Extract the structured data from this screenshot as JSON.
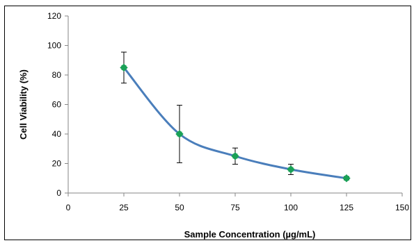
{
  "chart_data": {
    "type": "scatter",
    "title": "",
    "xlabel": "Sample Concentration (µg/mL)",
    "ylabel": "Cell Viability (%)",
    "xlim": [
      0,
      150
    ],
    "ylim": [
      0,
      120
    ],
    "x_ticks": [
      "0",
      "25",
      "50",
      "75",
      "100",
      "125",
      "150"
    ],
    "y_ticks": [
      "0",
      "20",
      "40",
      "60",
      "80",
      "100",
      "120"
    ],
    "grid": false,
    "legend": "none",
    "series": [
      {
        "x": [
          25,
          50,
          75,
          100,
          125
        ],
        "y": [
          85,
          40,
          25,
          16,
          10
        ],
        "error": [
          10.5,
          19.5,
          5.5,
          3.5,
          1
        ],
        "line": "smoothed",
        "line_color": "#4a7ebb",
        "marker_color": "#1aa157",
        "marker": "diamond"
      }
    ]
  }
}
